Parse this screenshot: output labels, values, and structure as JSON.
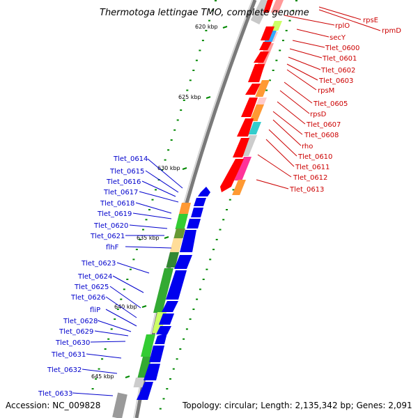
{
  "title": "Thermotoga lettingae TMO, complete genome",
  "footer": {
    "accession": "Accession: NC_009828",
    "stats": "Topology: circular; Length: 2,135,342 bp; Genes: 2,091"
  },
  "ticks": [
    {
      "label": "620 kbp"
    },
    {
      "label": "625 kbp"
    },
    {
      "label": "630 kbp"
    },
    {
      "label": "635 kbp"
    },
    {
      "label": "640 kbp"
    },
    {
      "label": "645 kbp"
    }
  ],
  "genes_right": [
    "rpsE",
    "rpmD",
    "rplO",
    "secY",
    "Tlet_0600",
    "Tlet_0601",
    "Tlet_0602",
    "Tlet_0603",
    "rpsM",
    "Tlet_0605",
    "rpsD",
    "Tlet_0607",
    "Tlet_0608",
    "rho",
    "Tlet_0610",
    "Tlet_0611",
    "Tlet_0612",
    "Tlet_0613"
  ],
  "genes_left": [
    "Tlet_0614",
    "Tlet_0615",
    "Tlet_0616",
    "Tlet_0617",
    "Tlet_0618",
    "Tlet_0619",
    "Tlet_0620",
    "Tlet_0621",
    "flhF",
    "Tlet_0623",
    "Tlet_0624",
    "Tlet_0625",
    "Tlet_0626",
    "fliP",
    "Tlet_0628",
    "Tlet_0629",
    "Tlet_0630",
    "Tlet_0631",
    "Tlet_0632",
    "Tlet_0633"
  ],
  "colors": {
    "forward_cds": "#ff0000",
    "reverse_cds": "#0000ee",
    "backbone": "#808080",
    "tick": "#008800",
    "label_right": "#cc0000",
    "label_left": "#0000cc"
  }
}
